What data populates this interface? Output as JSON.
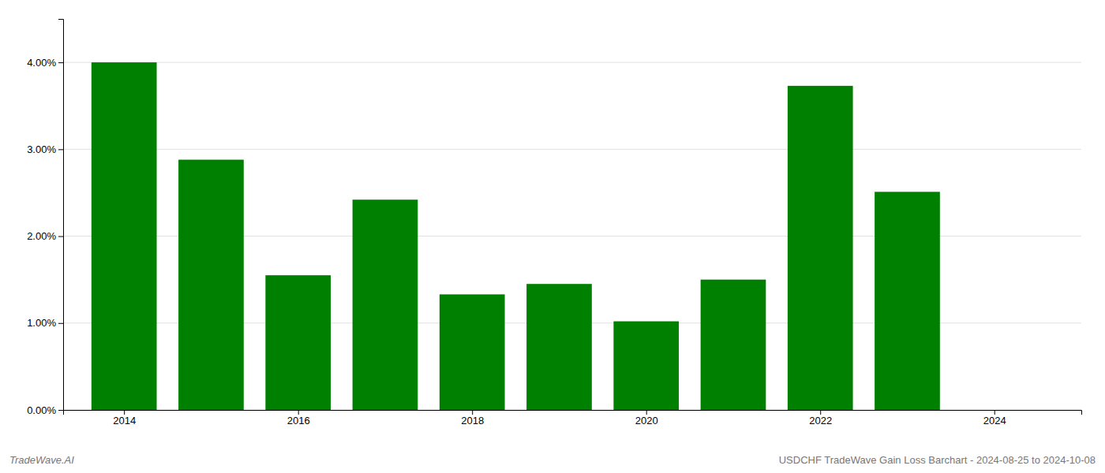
{
  "chart_data": {
    "type": "bar",
    "x": [
      2014,
      2015,
      2016,
      2017,
      2018,
      2019,
      2020,
      2021,
      2022,
      2023
    ],
    "values": [
      0.04,
      0.0288,
      0.0155,
      0.0242,
      0.0133,
      0.0145,
      0.0102,
      0.015,
      0.0373,
      0.0251
    ],
    "color": "#008000",
    "xlim": [
      2013.3,
      2025.0
    ],
    "xticks": [
      2014,
      2016,
      2018,
      2020,
      2022,
      2024
    ],
    "ylim": [
      0,
      0.045
    ],
    "yticks": [
      {
        "value": 0.0,
        "label": "0.00%"
      },
      {
        "value": 0.01,
        "label": "1.00%"
      },
      {
        "value": 0.02,
        "label": "2.00%"
      },
      {
        "value": 0.03,
        "label": "3.00%"
      },
      {
        "value": 0.04,
        "label": "4.00%"
      }
    ],
    "grid": true,
    "annotations": [
      "TradeWave.AI",
      "USDCHF TradeWave Gain Loss Barchart - 2024-08-25 to 2024-10-08"
    ]
  }
}
